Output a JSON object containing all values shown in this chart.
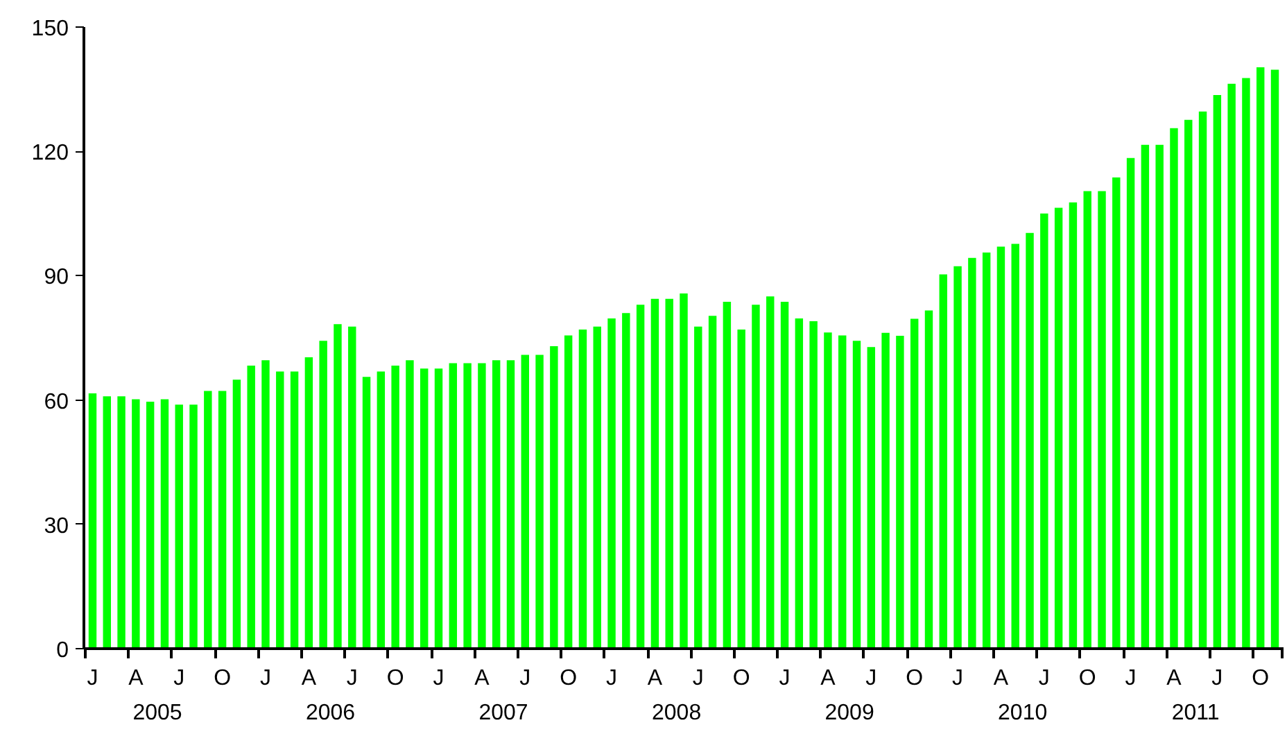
{
  "chart_data": {
    "type": "bar",
    "categories": [
      "J",
      null,
      null,
      "A",
      null,
      null,
      "J",
      null,
      null,
      "O",
      null,
      null,
      "J",
      null,
      null,
      "A",
      null,
      null,
      "J",
      null,
      null,
      "O",
      null,
      null,
      "J",
      null,
      null,
      "A",
      null,
      null,
      "J",
      null,
      null,
      "O",
      null,
      null,
      "J",
      null,
      null,
      "A",
      null,
      null,
      "J",
      null,
      null,
      "O",
      null,
      null,
      "J",
      null,
      null,
      "A",
      null,
      null,
      "J",
      null,
      null,
      "O",
      null,
      null,
      "J",
      null,
      null,
      "A",
      null,
      null,
      "J",
      null,
      null,
      "O",
      null,
      null,
      "J",
      null,
      null,
      "A",
      null,
      null,
      "J",
      null,
      null,
      "O",
      null
    ],
    "values": [
      61.6,
      60.9,
      60.9,
      60.2,
      59.6,
      60.2,
      58.9,
      58.9,
      62.2,
      62.2,
      64.9,
      68.3,
      69.6,
      66.9,
      66.9,
      70.3,
      74.3,
      78.3,
      77.7,
      65.6,
      66.9,
      68.3,
      69.6,
      67.6,
      67.6,
      68.9,
      68.9,
      68.9,
      69.6,
      69.6,
      70.9,
      70.9,
      73.0,
      75.6,
      77.0,
      77.7,
      79.7,
      81.0,
      83.0,
      84.4,
      84.4,
      85.7,
      77.7,
      80.3,
      83.7,
      77.0,
      83.0,
      85.0,
      83.7,
      79.7,
      79.0,
      76.3,
      75.6,
      74.3,
      72.8,
      76.2,
      75.5,
      79.6,
      81.6,
      90.3,
      92.3,
      94.3,
      95.6,
      97.0,
      97.7,
      100.3,
      105.0,
      106.4,
      107.7,
      110.4,
      110.4,
      113.7,
      118.4,
      121.6,
      121.6,
      125.6,
      127.6,
      129.6,
      133.6,
      136.3,
      137.7,
      140.3,
      139.7
    ],
    "color": "#00ff00",
    "ylim": [
      0,
      150
    ],
    "yticks": [
      0,
      30,
      60,
      90,
      120,
      150
    ],
    "annotations": [
      "2005",
      "2006",
      "2007",
      "2008",
      "2009",
      "2010",
      "2011"
    ],
    "grid": false
  }
}
